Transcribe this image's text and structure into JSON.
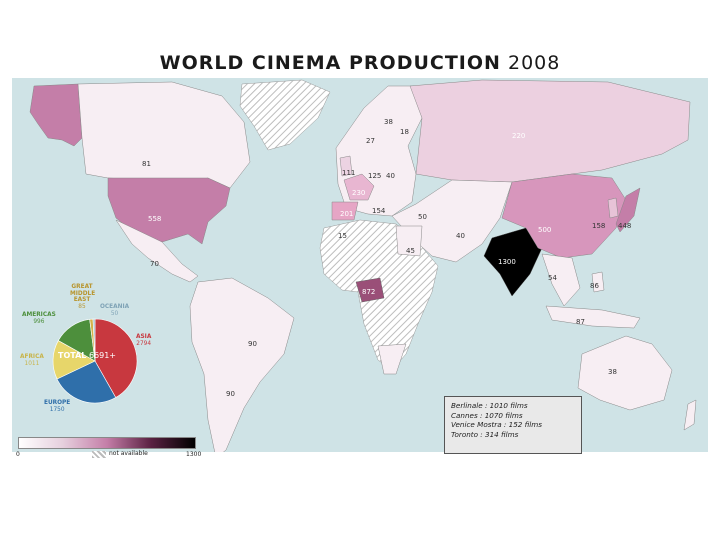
{
  "title": {
    "main": "WORLD CINEMA PRODUCTION",
    "year": "2008"
  },
  "colors": {
    "ocean": "#cfe3e6",
    "land_low": "#f7eef3",
    "land_mid": "#d796bc",
    "land_high": "#b5628f",
    "land_top": "#000000",
    "nodata_hatch": "#bdbdbd",
    "asia": "#c8383f",
    "europe": "#2f6faa",
    "africa": "#e7d66a",
    "americas": "#4d8f3c",
    "middle_east": "#d4b14a",
    "oceania": "#9bb9c9"
  },
  "countries": [
    {
      "id": "alaska",
      "value": ""
    },
    {
      "id": "canada",
      "value": "81"
    },
    {
      "id": "usa",
      "value": "558"
    },
    {
      "id": "mexico",
      "value": "70"
    },
    {
      "id": "brazil",
      "value": "90"
    },
    {
      "id": "argentina",
      "value": "90"
    },
    {
      "id": "uk",
      "value": "111"
    },
    {
      "id": "france",
      "value": "230"
    },
    {
      "id": "spain",
      "value": "201"
    },
    {
      "id": "germany",
      "value": "125"
    },
    {
      "id": "italy",
      "value": "154"
    },
    {
      "id": "poland",
      "value": "40"
    },
    {
      "id": "norway",
      "value": "27"
    },
    {
      "id": "sweden",
      "value": "38"
    },
    {
      "id": "finland",
      "value": "18"
    },
    {
      "id": "russia",
      "value": "220"
    },
    {
      "id": "turkey",
      "value": "50"
    },
    {
      "id": "morocco",
      "value": "15"
    },
    {
      "id": "egypt",
      "value": "45"
    },
    {
      "id": "iran",
      "value": "40"
    },
    {
      "id": "nigeria",
      "value": "872"
    },
    {
      "id": "india",
      "value": "1300"
    },
    {
      "id": "china",
      "value": "500"
    },
    {
      "id": "korea",
      "value": "158"
    },
    {
      "id": "japan",
      "value": "448"
    },
    {
      "id": "thailand",
      "value": "54"
    },
    {
      "id": "philippines",
      "value": "86"
    },
    {
      "id": "indonesia",
      "value": "87"
    },
    {
      "id": "australia",
      "value": "38"
    }
  ],
  "legend": {
    "scale_min": "0",
    "scale_max": "1300",
    "not_available": "not available"
  },
  "festivals": [
    "Berlinale : 1010 films",
    "Cannes : 1070 films",
    "Venice Mostra : 152 films",
    "Toronto : 314 films"
  ],
  "pie": {
    "total_label": "TOTAL",
    "total_value": "6691+",
    "segments": [
      {
        "name": "ASIA",
        "value": 2794,
        "value_label": "2794",
        "color": "#c8383f"
      },
      {
        "name": "EUROPE",
        "value": 1750,
        "value_label": "1750",
        "color": "#2f6faa"
      },
      {
        "name": "AFRICA",
        "value": 1011,
        "value_label": "1011",
        "color": "#e7d66a"
      },
      {
        "name": "AMERICAS",
        "value": 996,
        "value_label": "996",
        "color": "#4d8f3c"
      },
      {
        "name": "GREAT MIDDLE EAST",
        "value": 85,
        "value_label": "85",
        "color": "#d4b14a"
      },
      {
        "name": "OCEANIA",
        "value": 50,
        "value_label": "50",
        "color": "#9bb9c9"
      }
    ]
  }
}
